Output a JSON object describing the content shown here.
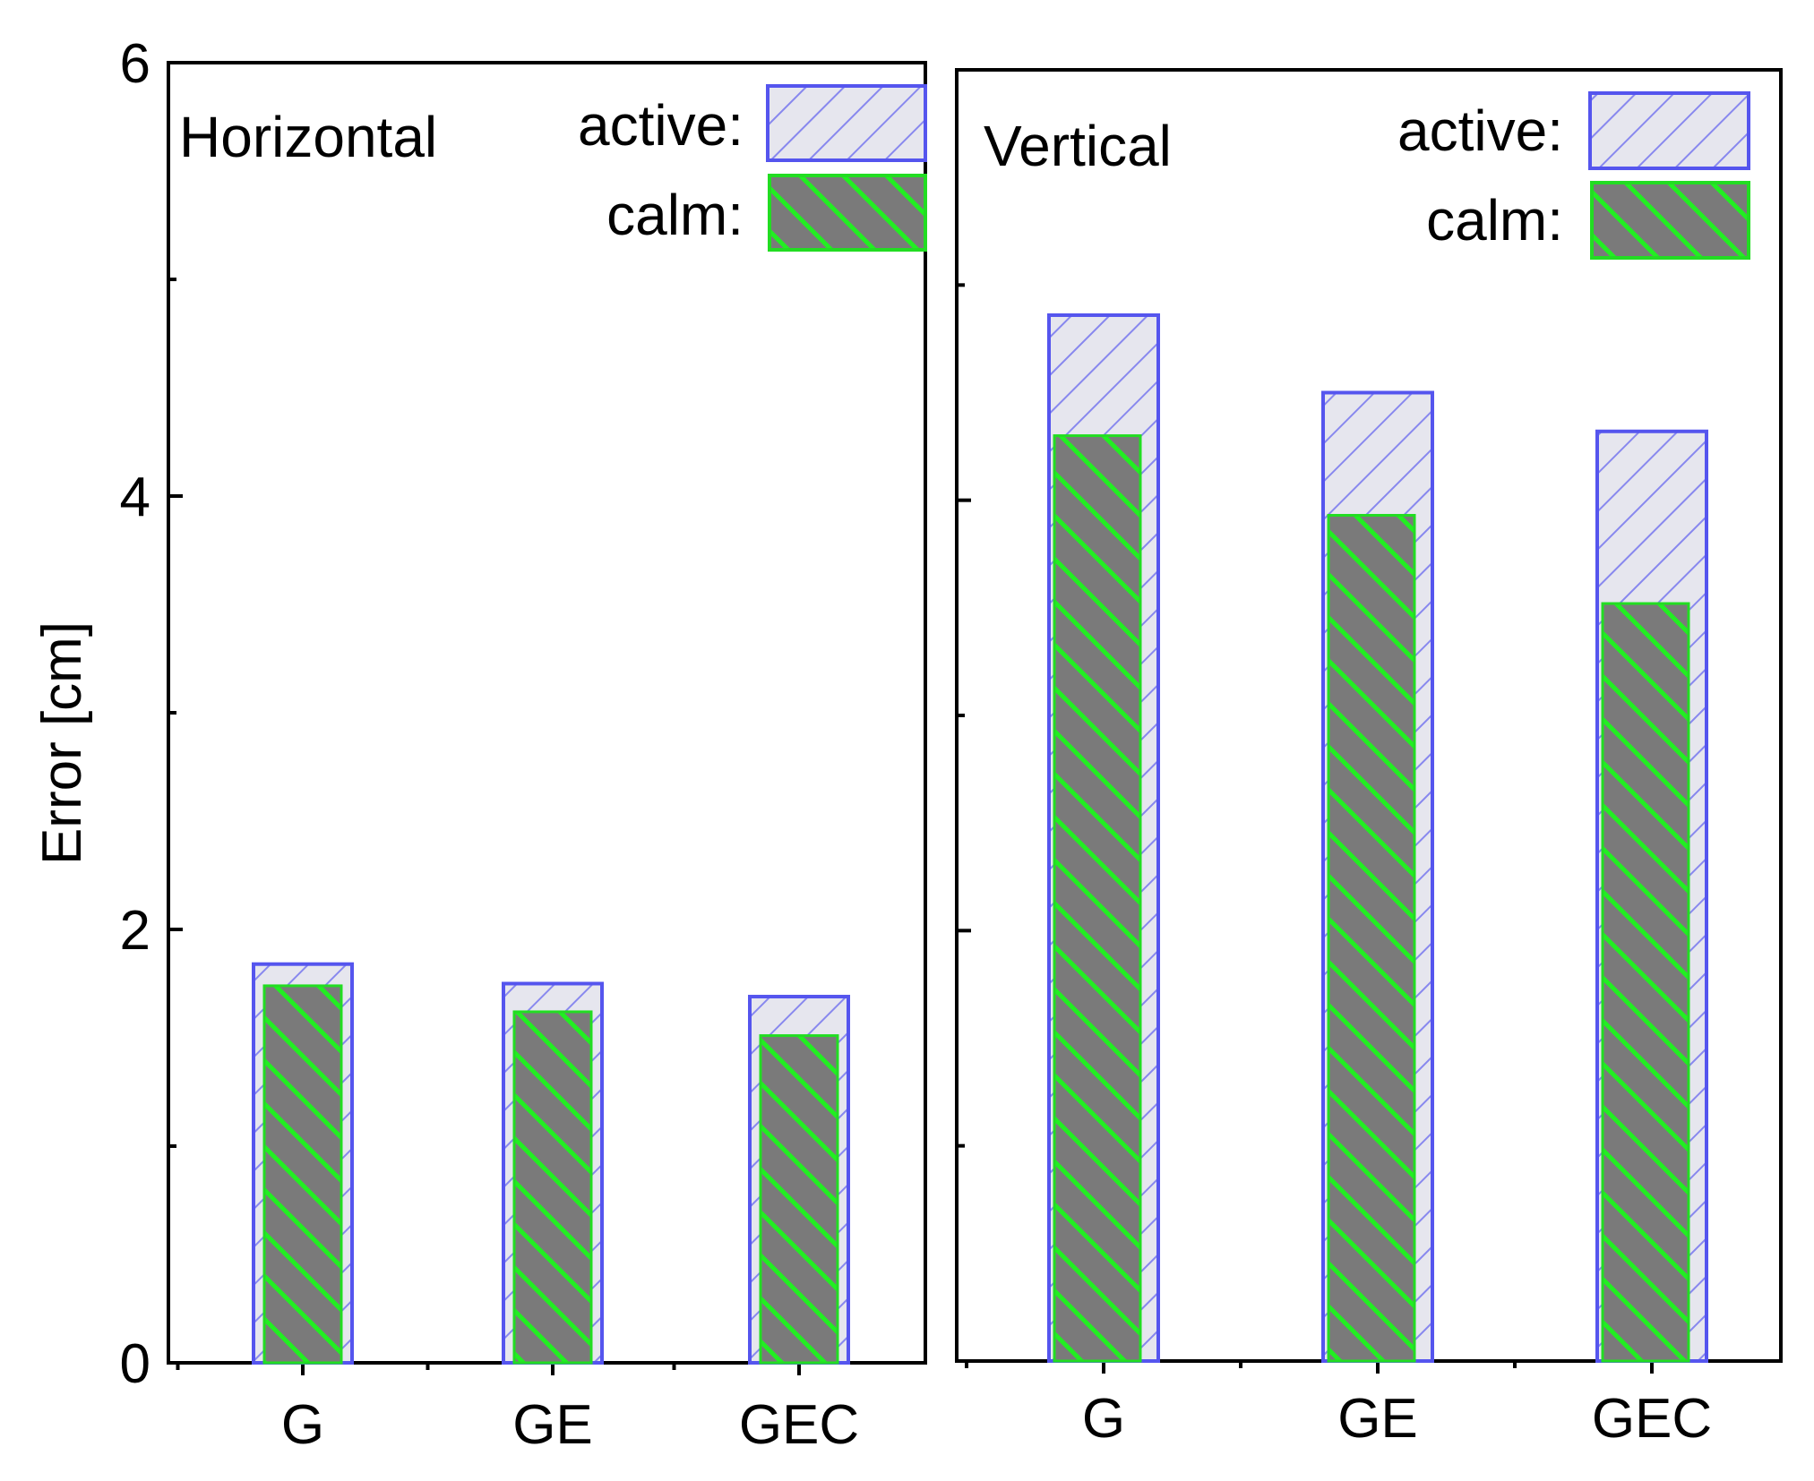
{
  "chart_data": [
    {
      "type": "bar",
      "panel_title": "Horizontal",
      "categories": [
        "G",
        "GE",
        "GEC"
      ],
      "series": [
        {
          "name": "active:",
          "values": [
            1.84,
            1.75,
            1.69
          ]
        },
        {
          "name": "calm:",
          "values": [
            1.74,
            1.62,
            1.51
          ]
        }
      ],
      "ylabel": "Error [cm]",
      "ylim": [
        0,
        6
      ],
      "yticks": [
        "0",
        "2",
        "4",
        "6"
      ],
      "legend_position": "top-right",
      "grid": false,
      "overlapped_bars": true
    },
    {
      "type": "bar",
      "panel_title": "Vertical",
      "categories": [
        "G",
        "GE",
        "GEC"
      ],
      "series": [
        {
          "name": "active:",
          "values": [
            4.86,
            4.5,
            4.32
          ]
        },
        {
          "name": "calm:",
          "values": [
            4.3,
            3.93,
            3.52
          ]
        }
      ],
      "ylim": [
        0,
        6
      ],
      "legend_position": "top-right",
      "grid": false,
      "overlapped_bars": true
    }
  ],
  "colors": {
    "active_stroke": "#5555ee",
    "active_fill": "#e6e6ee",
    "active_hatch": "#8888ee",
    "calm_stroke": "#22dd22",
    "calm_fill": "#7a7a7a",
    "calm_hatch": "#22ee22"
  }
}
